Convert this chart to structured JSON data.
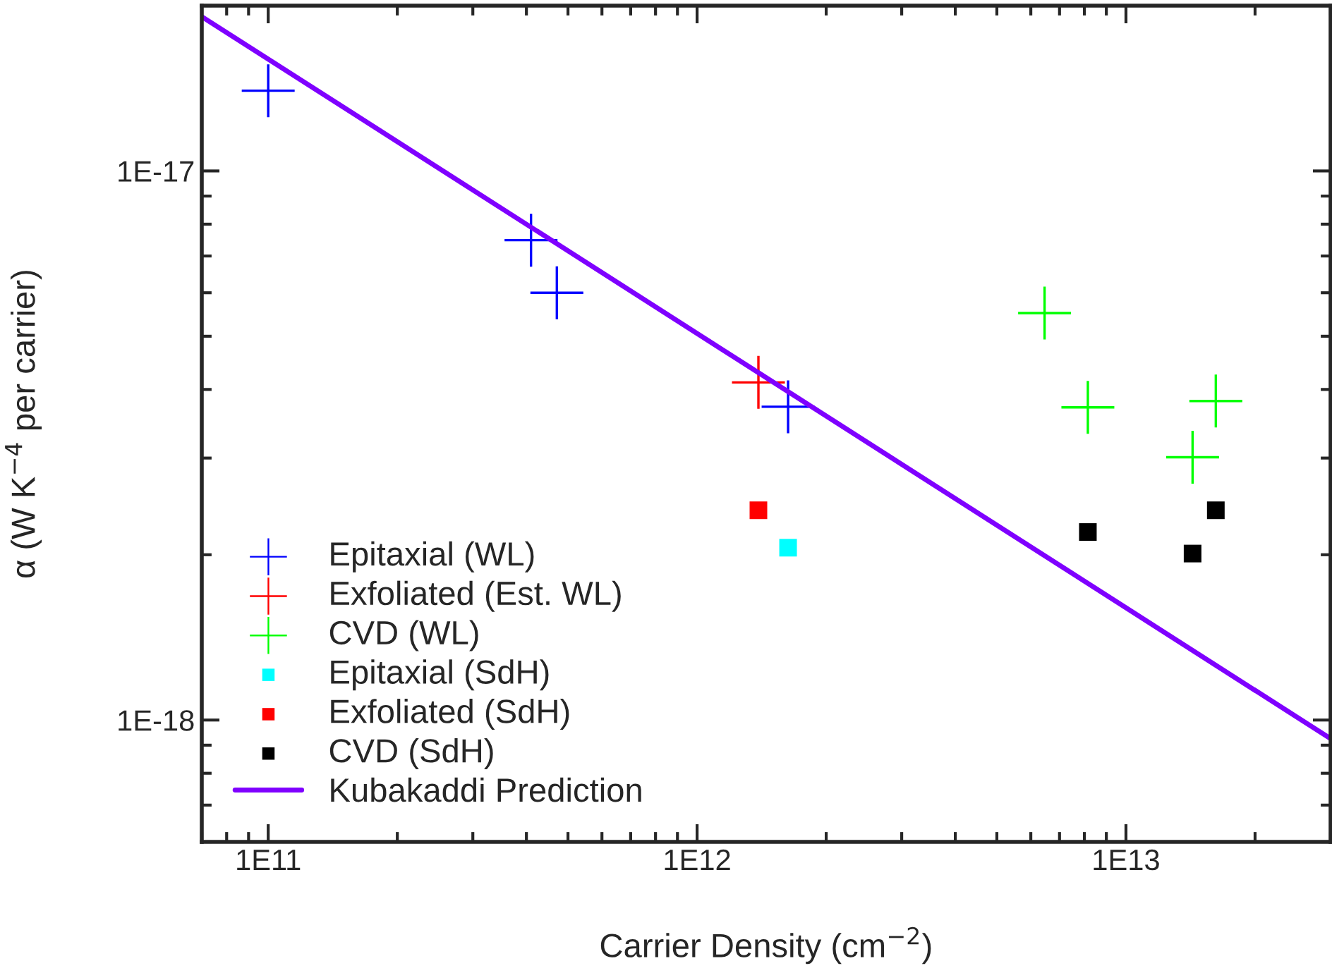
{
  "chart_data": {
    "type": "scatter",
    "xlabel": "Carrier Density (cm$^{−2}$)",
    "ylabel": "α (W K$^{−4}$ per carrier)",
    "log": "xy",
    "xlim": [
      70000000000.0,
      30000000000000.0
    ],
    "ylim": [
      6e-19,
      2e-17
    ],
    "xticks": [
      {
        "value": 100000000000.0,
        "label": "1E11"
      },
      {
        "value": 1000000000000.0,
        "label": "1E12"
      },
      {
        "value": 10000000000000.0,
        "label": "1E13"
      }
    ],
    "yticks": [
      {
        "value": 1e-18,
        "label": "1E-18"
      },
      {
        "value": 1e-17,
        "label": "1E-17"
      }
    ],
    "grid": false,
    "legend": "bottom left",
    "series": [
      {
        "name": "Epitaxial (WL)",
        "marker": "cross",
        "color": "#0000ff",
        "x": [
          100000000000.0,
          410000000000.0,
          471000000000.0,
          1630000000000.0
        ],
        "values": [
          1.4e-17,
          7.48e-18,
          6e-18,
          3.72e-18
        ]
      },
      {
        "name": "Exfoliated (Est. WL)",
        "marker": "cross",
        "color": "#ff0000",
        "x": [
          1390000000000.0
        ],
        "values": [
          4.12e-18
        ]
      },
      {
        "name": "CVD (WL)",
        "marker": "cross",
        "color": "#00ff00",
        "x": [
          6460000000000.0,
          8150000000000.0,
          14300000000000.0,
          16200000000000.0
        ],
        "values": [
          5.51e-18,
          3.71e-18,
          3.01e-18,
          3.81e-18
        ]
      },
      {
        "name": "Epitaxial (SdH)",
        "marker": "square",
        "color": "#00ffff",
        "x": [
          1630000000000.0
        ],
        "values": [
          2.06e-18
        ]
      },
      {
        "name": "Exfoliated (SdH)",
        "marker": "square",
        "color": "#ff0000",
        "x": [
          1390000000000.0
        ],
        "values": [
          2.41e-18
        ]
      },
      {
        "name": "CVD (SdH)",
        "marker": "square",
        "color": "#000000",
        "x": [
          8150000000000.0,
          14300000000000.0,
          16200000000000.0
        ],
        "values": [
          2.2e-18,
          2.01e-18,
          2.41e-18
        ]
      },
      {
        "name": "Kubakaddi Prediction",
        "type": "line",
        "marker": "none",
        "color": "#7f00ff",
        "x": [
          70000000000.0,
          30000000000000.0
        ],
        "values": [
          1.91e-17,
          9.25e-19
        ]
      }
    ]
  }
}
